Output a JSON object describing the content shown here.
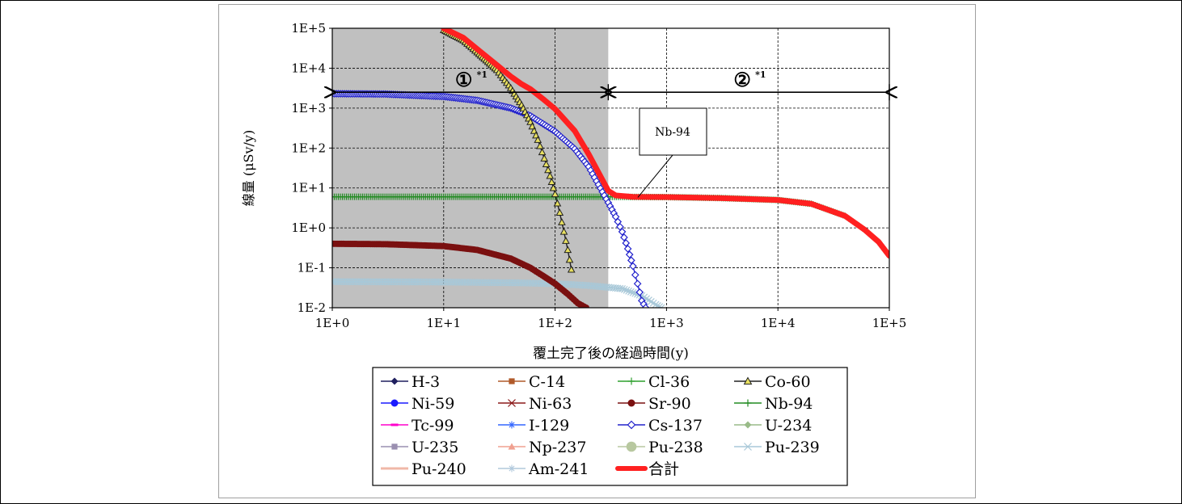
{
  "chart_data": {
    "type": "line",
    "xlabel": "覆土完了後の経過時間(y)",
    "ylabel": "線量 (μSv/y)",
    "xscale": "log",
    "yscale": "log",
    "xlim": [
      1,
      100000
    ],
    "ylim": [
      0.01,
      100000
    ],
    "x_ticks": [
      "1E+0",
      "1E+1",
      "1E+2",
      "1E+3",
      "1E+4",
      "1E+5"
    ],
    "y_ticks": [
      "1E-2",
      "1E-1",
      "1E+0",
      "1E+1",
      "1E+2",
      "1E+3",
      "1E+4",
      "1E+5"
    ],
    "grid": true,
    "legend_position": "bottom",
    "shaded_region": {
      "x_from": 1,
      "x_to": 300,
      "color": "#c0c0c0"
    },
    "annotations": [
      {
        "label": "①",
        "sup": "*1",
        "x_from": 1,
        "x_to": 300,
        "y": 2500
      },
      {
        "label": "②",
        "sup": "*1",
        "x_from": 300,
        "x_to": 100000,
        "y": 2500
      },
      {
        "label": "Nb-94",
        "target_x": 500,
        "target_y": 5.8
      }
    ],
    "series": [
      {
        "name": "H-3",
        "color": "#1f1f5f",
        "marker": "diamond-filled",
        "points": []
      },
      {
        "name": "C-14",
        "color": "#b05a2a",
        "marker": "square-filled",
        "points": []
      },
      {
        "name": "Cl-36",
        "color": "#2fa02f",
        "marker": "plus",
        "points": []
      },
      {
        "name": "Co-60",
        "color": "#202020",
        "marker": "triangle-open",
        "points": [
          [
            10,
            90000
          ],
          [
            15,
            50000
          ],
          [
            20,
            25000
          ],
          [
            30,
            9000
          ],
          [
            40,
            3200
          ],
          [
            50,
            1200
          ],
          [
            60,
            450
          ],
          [
            70,
            160
          ],
          [
            80,
            55
          ],
          [
            90,
            20
          ],
          [
            100,
            7
          ],
          [
            110,
            2.4
          ],
          [
            120,
            0.8
          ],
          [
            130,
            0.28
          ],
          [
            140,
            0.09
          ]
        ]
      },
      {
        "name": "Ni-59",
        "color": "#1a1aff",
        "marker": "circle-filled",
        "points": []
      },
      {
        "name": "Ni-63",
        "color": "#8b1a1a",
        "marker": "x",
        "points": []
      },
      {
        "name": "Sr-90",
        "color": "#7a1010",
        "marker": "circle-filled",
        "points": [
          [
            1,
            0.4
          ],
          [
            3,
            0.39
          ],
          [
            10,
            0.35
          ],
          [
            20,
            0.28
          ],
          [
            40,
            0.17
          ],
          [
            60,
            0.1
          ],
          [
            80,
            0.06
          ],
          [
            100,
            0.04
          ],
          [
            130,
            0.022
          ],
          [
            160,
            0.013
          ],
          [
            190,
            0.01
          ]
        ]
      },
      {
        "name": "Nb-94",
        "color": "#228b22",
        "marker": "plus",
        "points": [
          [
            1,
            6
          ],
          [
            10,
            6
          ],
          [
            100,
            6
          ],
          [
            300,
            6
          ],
          [
            1000,
            5.9
          ],
          [
            3000,
            5.6
          ],
          [
            10000,
            5
          ],
          [
            20000,
            4
          ],
          [
            40000,
            2
          ],
          [
            60000,
            0.9
          ],
          [
            80000,
            0.45
          ],
          [
            100000,
            0.2
          ]
        ]
      },
      {
        "name": "Tc-99",
        "color": "#ff00cc",
        "marker": "dash",
        "points": []
      },
      {
        "name": "I-129",
        "color": "#3366ff",
        "marker": "asterisk",
        "points": []
      },
      {
        "name": "Cs-137",
        "color": "#2222cc",
        "marker": "diamond-open",
        "points": [
          [
            1,
            2300
          ],
          [
            3,
            2250
          ],
          [
            10,
            1950
          ],
          [
            20,
            1560
          ],
          [
            40,
            1000
          ],
          [
            60,
            640
          ],
          [
            100,
            260
          ],
          [
            150,
            95
          ],
          [
            200,
            34
          ],
          [
            300,
            4.3
          ],
          [
            350,
            1.9
          ],
          [
            400,
            0.8
          ],
          [
            450,
            0.3
          ],
          [
            500,
            0.11
          ],
          [
            550,
            0.04
          ],
          [
            600,
            0.015
          ],
          [
            650,
            0.01
          ]
        ]
      },
      {
        "name": "U-234",
        "color": "#99bb88",
        "marker": "diamond-filled",
        "points": []
      },
      {
        "name": "U-235",
        "color": "#9a8fb0",
        "marker": "square-filled",
        "points": []
      },
      {
        "name": "Np-237",
        "color": "#f0a090",
        "marker": "triangle-filled",
        "points": []
      },
      {
        "name": "Pu-238",
        "color": "#b8c8a0",
        "marker": "circle-large",
        "points": []
      },
      {
        "name": "Pu-239",
        "color": "#a8c8d8",
        "marker": "x",
        "points": [
          [
            1,
            0.045
          ],
          [
            10,
            0.044
          ],
          [
            50,
            0.042
          ],
          [
            100,
            0.04
          ],
          [
            200,
            0.036
          ],
          [
            400,
            0.03
          ],
          [
            600,
            0.02
          ],
          [
            800,
            0.012
          ],
          [
            900,
            0.01
          ]
        ]
      },
      {
        "name": "Pu-240",
        "color": "#f0b8a8",
        "marker": "line",
        "points": []
      },
      {
        "name": "Am-241",
        "color": "#b0c8dc",
        "marker": "asterisk",
        "points": []
      },
      {
        "name": "合計",
        "color": "#ff2020",
        "marker": "thick",
        "points": [
          [
            10,
            100000
          ],
          [
            15,
            58000
          ],
          [
            20,
            30000
          ],
          [
            30,
            12000
          ],
          [
            40,
            6200
          ],
          [
            50,
            4000
          ],
          [
            60,
            3000
          ],
          [
            80,
            1600
          ],
          [
            100,
            950
          ],
          [
            150,
            270
          ],
          [
            200,
            70
          ],
          [
            250,
            22
          ],
          [
            300,
            8.5
          ],
          [
            350,
            6.5
          ],
          [
            500,
            6
          ],
          [
            1000,
            5.9
          ],
          [
            3000,
            5.6
          ],
          [
            10000,
            5
          ],
          [
            20000,
            4
          ],
          [
            40000,
            2
          ],
          [
            60000,
            0.9
          ],
          [
            80000,
            0.45
          ],
          [
            100000,
            0.2
          ]
        ]
      }
    ]
  }
}
